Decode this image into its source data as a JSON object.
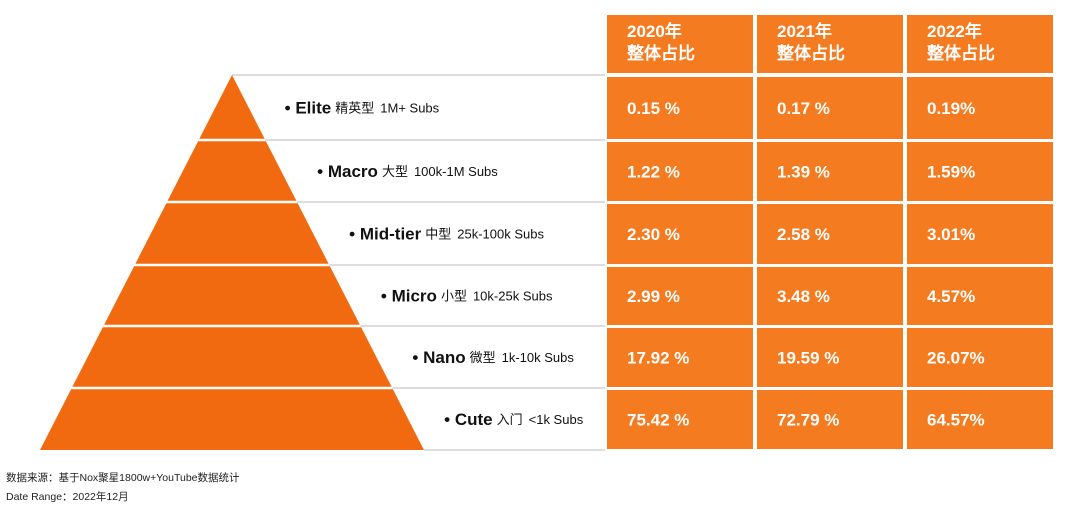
{
  "table": {
    "header": [
      "2020年\n整体占比",
      "2021年\n整体占比",
      "2022年\n整体占比"
    ],
    "rows": [
      {
        "name": "Elite",
        "cn": "精英型",
        "range": "1M+ Subs",
        "values": [
          "0.15 %",
          "0.17 %",
          "0.19%"
        ]
      },
      {
        "name": "Macro",
        "cn": "大型",
        "range": "100k-1M Subs",
        "values": [
          "1.22 %",
          "1.39 %",
          "1.59%"
        ]
      },
      {
        "name": "Mid-tier",
        "cn": "中型",
        "range": "25k-100k Subs",
        "values": [
          "2.30 %",
          "2.58 %",
          "3.01%"
        ]
      },
      {
        "name": "Micro",
        "cn": "小型",
        "range": "10k-25k Subs",
        "values": [
          "2.99 %",
          "3.48 %",
          "4.57%"
        ]
      },
      {
        "name": "Nano",
        "cn": "微型",
        "range": "1k-10k Subs",
        "values": [
          "17.92 %",
          "19.59 %",
          "26.07%"
        ]
      },
      {
        "name": "Cute",
        "cn": "入门",
        "range": "<1k Subs",
        "values": [
          "75.42 %",
          "72.79 %",
          "64.57%"
        ]
      }
    ]
  },
  "footer": {
    "source": "数据来源：基于Nox聚星1800w+YouTube数据统计",
    "date_range": "Date Range：2022年12月"
  }
}
